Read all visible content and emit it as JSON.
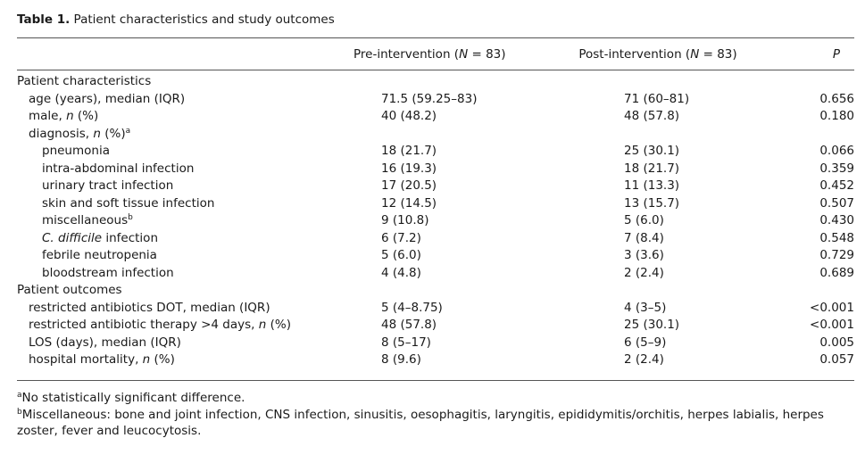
{
  "table": {
    "caption_label": "Table 1.",
    "caption_text": "Patient characteristics and study outcomes",
    "headers": {
      "pre_prefix": "Pre-intervention (",
      "pre_n": "N",
      "pre_suffix": " = 83)",
      "post_prefix": "Post-intervention (",
      "post_n": "N",
      "post_suffix": " = 83)",
      "p": "P"
    },
    "sections": {
      "characteristics": "Patient characteristics",
      "outcomes": "Patient outcomes"
    },
    "rows": {
      "age": {
        "label": "age (years), median (IQR)",
        "pre": "71.5 (59.25–83)",
        "post": "71 (60–81)",
        "p": "0.656"
      },
      "male": {
        "label_pre": "male, ",
        "label_n": "n",
        "label_post": " (%)",
        "pre": "40 (48.2)",
        "post": "48 (57.8)",
        "p": "0.180"
      },
      "diagnosis": {
        "label_pre": "diagnosis, ",
        "label_n": "n",
        "label_post": " (%)",
        "sup": "a"
      },
      "pneumonia": {
        "label": "pneumonia",
        "pre": "18 (21.7)",
        "post": "25 (30.1)",
        "p": "0.066"
      },
      "intra_abdominal": {
        "label": "intra-abdominal infection",
        "pre": "16 (19.3)",
        "post": "18 (21.7)",
        "p": "0.359"
      },
      "uti": {
        "label": "urinary tract infection",
        "pre": "17 (20.5)",
        "post": "11 (13.3)",
        "p": "0.452"
      },
      "skin": {
        "label": "skin and soft tissue infection",
        "pre": "12 (14.5)",
        "post": "13 (15.7)",
        "p": "0.507"
      },
      "misc": {
        "label": "miscellaneous",
        "sup": "b",
        "pre": "9 (10.8)",
        "post": "5 (6.0)",
        "p": "0.430"
      },
      "cdiff": {
        "label_it": "C. difficile",
        "label_post": " infection",
        "pre": "6 (7.2)",
        "post": "7 (8.4)",
        "p": "0.548"
      },
      "febrile": {
        "label": "febrile neutropenia",
        "pre": "5 (6.0)",
        "post": "3 (3.6)",
        "p": "0.729"
      },
      "bloodstream": {
        "label": "bloodstream infection",
        "pre": "4 (4.8)",
        "post": "2 (2.4)",
        "p": "0.689"
      },
      "dot": {
        "label": "restricted antibiotics DOT, median (IQR)",
        "pre": "5 (4–8.75)",
        "post": "4 (3–5)",
        "p": "<0.001"
      },
      "therapy": {
        "label_pre": "restricted antibiotic therapy >4 days, ",
        "label_n": "n",
        "label_post": " (%)",
        "pre": "48 (57.8)",
        "post": "25 (30.1)",
        "p": "<0.001"
      },
      "los": {
        "label": "LOS (days), median (IQR)",
        "pre": "8 (5–17)",
        "post": "6 (5–9)",
        "p": "0.005"
      },
      "mortality": {
        "label_pre": "hospital mortality, ",
        "label_n": "n",
        "label_post": " (%)",
        "pre": "8 (9.6)",
        "post": "2 (2.4)",
        "p": "0.057"
      }
    },
    "footnotes": {
      "a_mark": "a",
      "a_text": "No statistically significant difference.",
      "b_mark": "b",
      "b_text": "Miscellaneous: bone and joint infection, CNS infection, sinusitis, oesophagitis, laryngitis, epididymitis/orchitis, herpes labialis, herpes zoster, fever and leucocytosis."
    }
  }
}
